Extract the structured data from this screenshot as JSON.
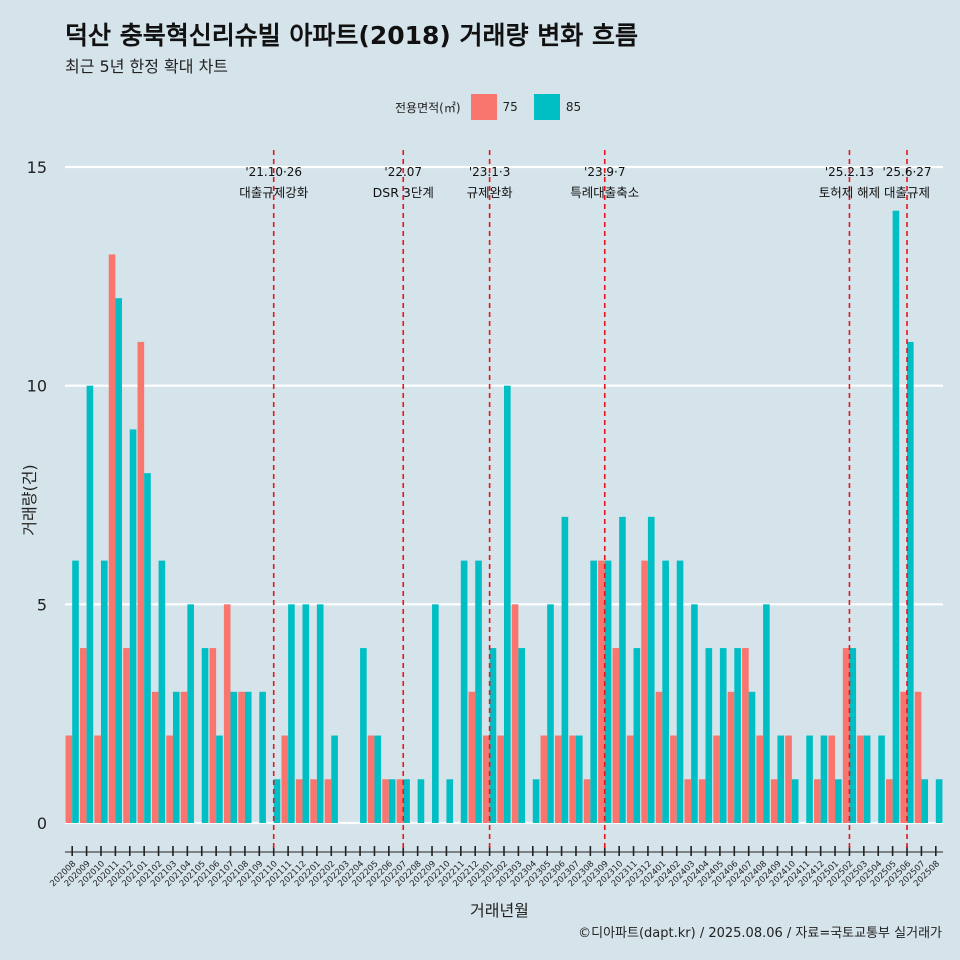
{
  "chart_data": {
    "type": "bar",
    "title": "덕산 충북혁신리슈빌 아파트(2018) 거래량 변화 흐름",
    "subtitle": "최근 5년 한정 확대 차트",
    "xlabel": "거래년월",
    "ylabel": "거래량(건)",
    "ylim": [
      0,
      15
    ],
    "yticks": [
      0,
      5,
      10,
      15
    ],
    "grid": "horizontal",
    "legend_title": "전용면적(㎡)",
    "legend_position": "top",
    "caption": "©디아파트(dapt.kr) / 2025.08.06 / 자료=국토교통부 실거래가",
    "colors": {
      "75": "#f8766d",
      "85": "#00bfc4",
      "background": "#d5e3ea",
      "event_line": "#e8141b"
    },
    "categories": [
      "202008",
      "202009",
      "202010",
      "202011",
      "202012",
      "202101",
      "202102",
      "202103",
      "202104",
      "202105",
      "202106",
      "202107",
      "202108",
      "202109",
      "202110",
      "202111",
      "202112",
      "202201",
      "202202",
      "202203",
      "202204",
      "202205",
      "202206",
      "202207",
      "202208",
      "202209",
      "202210",
      "202211",
      "202212",
      "202301",
      "202302",
      "202303",
      "202304",
      "202305",
      "202306",
      "202307",
      "202308",
      "202309",
      "202310",
      "202311",
      "202312",
      "202401",
      "202402",
      "202403",
      "202404",
      "202405",
      "202406",
      "202407",
      "202408",
      "202409",
      "202410",
      "202411",
      "202412",
      "202501",
      "202502",
      "202503",
      "202504",
      "202505",
      "202506",
      "202507",
      "202508"
    ],
    "series": [
      {
        "name": "75",
        "values": [
          2,
          4,
          2,
          13,
          4,
          11,
          3,
          2,
          3,
          0,
          4,
          5,
          3,
          0,
          0,
          2,
          1,
          1,
          1,
          0,
          0,
          2,
          1,
          1,
          0,
          0,
          0,
          0,
          3,
          2,
          2,
          5,
          0,
          2,
          2,
          2,
          1,
          6,
          4,
          2,
          6,
          3,
          2,
          1,
          1,
          2,
          3,
          4,
          2,
          1,
          2,
          0,
          1,
          2,
          4,
          2,
          0,
          1,
          3,
          3,
          0
        ]
      },
      {
        "name": "85",
        "values": [
          6,
          10,
          6,
          12,
          9,
          8,
          6,
          3,
          5,
          4,
          2,
          3,
          3,
          3,
          1,
          5,
          5,
          5,
          2,
          0,
          4,
          2,
          1,
          1,
          1,
          5,
          1,
          6,
          6,
          4,
          10,
          4,
          1,
          5,
          7,
          2,
          6,
          6,
          7,
          4,
          7,
          6,
          6,
          5,
          4,
          4,
          4,
          3,
          5,
          2,
          1,
          2,
          2,
          1,
          4,
          2,
          2,
          14,
          11,
          1,
          1
        ]
      }
    ],
    "events": [
      {
        "label1": "'21.10·26",
        "label2": "대출규제강화",
        "x_index": 14
      },
      {
        "label1": "'22.07",
        "label2": "DSR 3단계",
        "x_index": 23
      },
      {
        "label1": "'23.1·3",
        "label2": "규제완화",
        "x_index": 29
      },
      {
        "label1": "'23.9·7",
        "label2": "특례대출축소",
        "x_index": 37
      },
      {
        "label1": "'25.2.13",
        "label2": "토허제 해제",
        "x_index": 54
      },
      {
        "label1": "'25.6·27",
        "label2": "대출규제",
        "x_index": 58
      }
    ]
  }
}
